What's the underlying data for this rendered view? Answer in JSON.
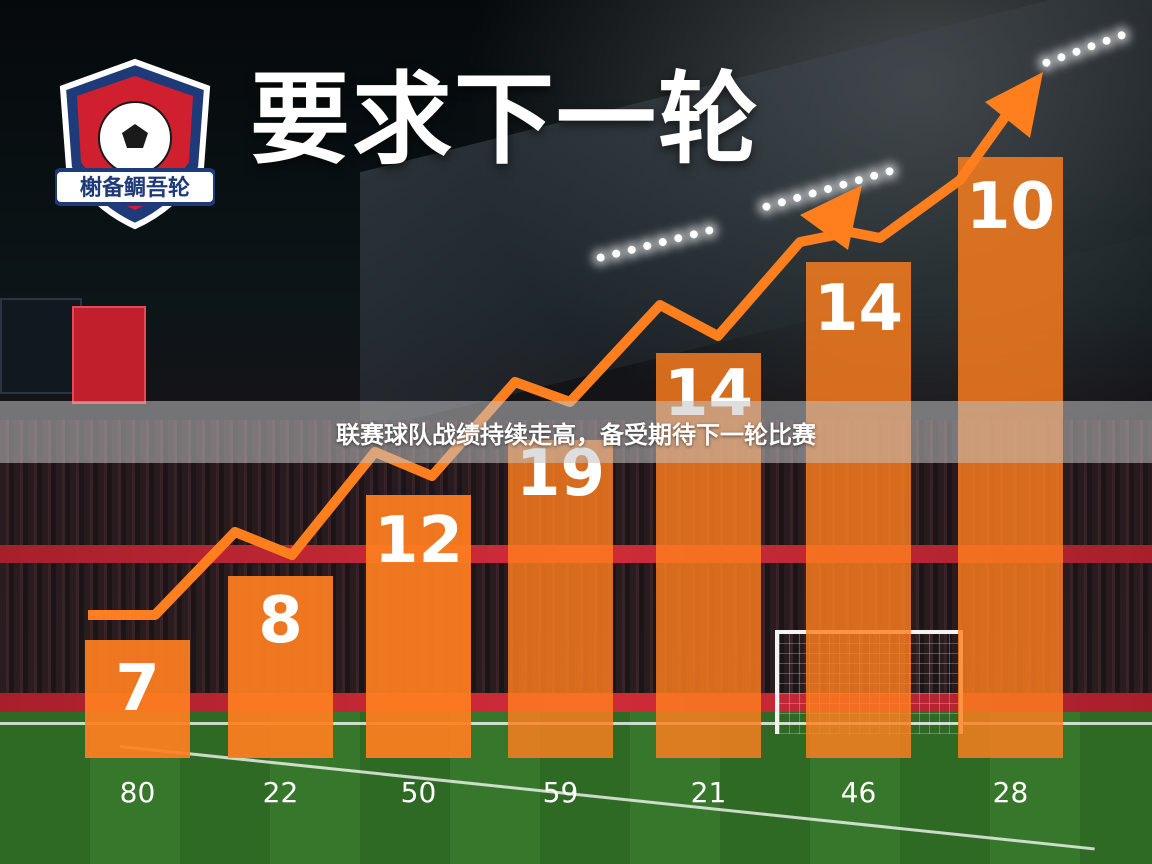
{
  "headline": "要求下一轮",
  "banner": "联赛球队战绩持续走高，备受期待下一轮比赛",
  "logo": {
    "text": "榭备鲷吾轮",
    "colors": {
      "shield": "#d0202f",
      "border": "#1e3a78",
      "ball": "#ffffff"
    }
  },
  "colors": {
    "bar": "#ff7f1f",
    "line": "#ff7f1f"
  },
  "chart_data": {
    "type": "bar",
    "categories": [
      "80",
      "22",
      "50",
      "59",
      "21",
      "46",
      "28"
    ],
    "values": [
      7,
      8,
      12,
      19,
      14,
      14,
      10
    ],
    "labels": [
      "7",
      "8",
      "12",
      "19",
      "14",
      "14",
      "10"
    ],
    "trend_line": true
  }
}
